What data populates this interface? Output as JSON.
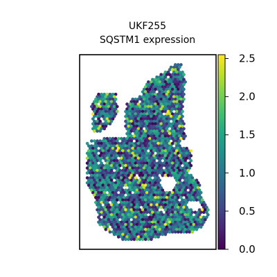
{
  "chart_data": {
    "type": "scatter",
    "title": "UKF255",
    "subtitle": "SQSTM1 expression",
    "xlabel": "",
    "ylabel": "",
    "colormap": "viridis",
    "color_range": [
      0.0,
      2.55
    ],
    "colorbar_ticks": [
      "0.0",
      "0.5",
      "1.0",
      "1.5",
      "2.0",
      "2.5"
    ],
    "colorbar_tick_values": [
      0.0,
      0.5,
      1.0,
      1.5,
      2.0,
      2.5
    ],
    "grid": false,
    "legend": "colorbar-right",
    "marker": "hexagonal-spot",
    "seed": 255
  }
}
